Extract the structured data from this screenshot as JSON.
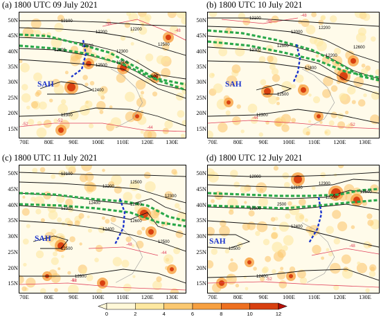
{
  "panels": [
    {
      "id": "a",
      "title": "(a) 1800 UTC 09 July 2021",
      "contours": [
        "12100",
        "12200",
        "12300",
        "12400",
        "12500",
        "12400",
        "12300",
        "12200",
        "12500",
        "12600",
        "12500",
        "600"
      ],
      "red_labels": [
        "-52",
        "-48",
        "-44",
        "-48",
        "-52"
      ]
    },
    {
      "id": "b",
      "title": "(b) 1800 UTC 10 July 2021",
      "contours": [
        "12100",
        "12000",
        "12200",
        "12300",
        "12400",
        "12500",
        "12300",
        "12200",
        "12600",
        "12500"
      ],
      "red_labels": [
        "-44",
        "-48",
        "-52",
        "-48"
      ]
    },
    {
      "id": "c",
      "title": "(c) 1800 UTC 11 July 2021",
      "contours": [
        "12100",
        "12200",
        "12000",
        "12300",
        "12400",
        "12500",
        "12600",
        "12500",
        "12300",
        "12400",
        "12600",
        "12500"
      ],
      "red_labels": [
        "-48",
        "-44",
        "-52",
        "-48",
        "-52"
      ]
    },
    {
      "id": "d",
      "title": "(d) 1800 UTC 12 July 2021",
      "contours": [
        "12000",
        "12100",
        "12200",
        "12300",
        "12400",
        "12500",
        "12400",
        "12300",
        "12500",
        "2500"
      ],
      "red_labels": [
        "-52",
        "-48",
        "-44",
        "-48"
      ]
    }
  ],
  "sah_label": "SAH",
  "lat_labels": [
    "50N",
    "45N",
    "40N",
    "35N",
    "30N",
    "25N",
    "20N",
    "15N"
  ],
  "lon_labels": [
    "70E",
    "80E",
    "90E",
    "100E",
    "110E",
    "120E",
    "130E"
  ],
  "colorbar": {
    "ticks": [
      "0",
      "2",
      "4",
      "6",
      "8",
      "10",
      "12"
    ],
    "colors": [
      "#fff8d8",
      "#fde8a0",
      "#fbc870",
      "#f7a040",
      "#ee7020",
      "#d84010",
      "#b81008"
    ]
  },
  "colors": {
    "contour": "#111111",
    "jet": "#2aa84a",
    "trough": "#1a33cc",
    "isotherm": "#e0405a",
    "sah": "#1a33cc"
  }
}
